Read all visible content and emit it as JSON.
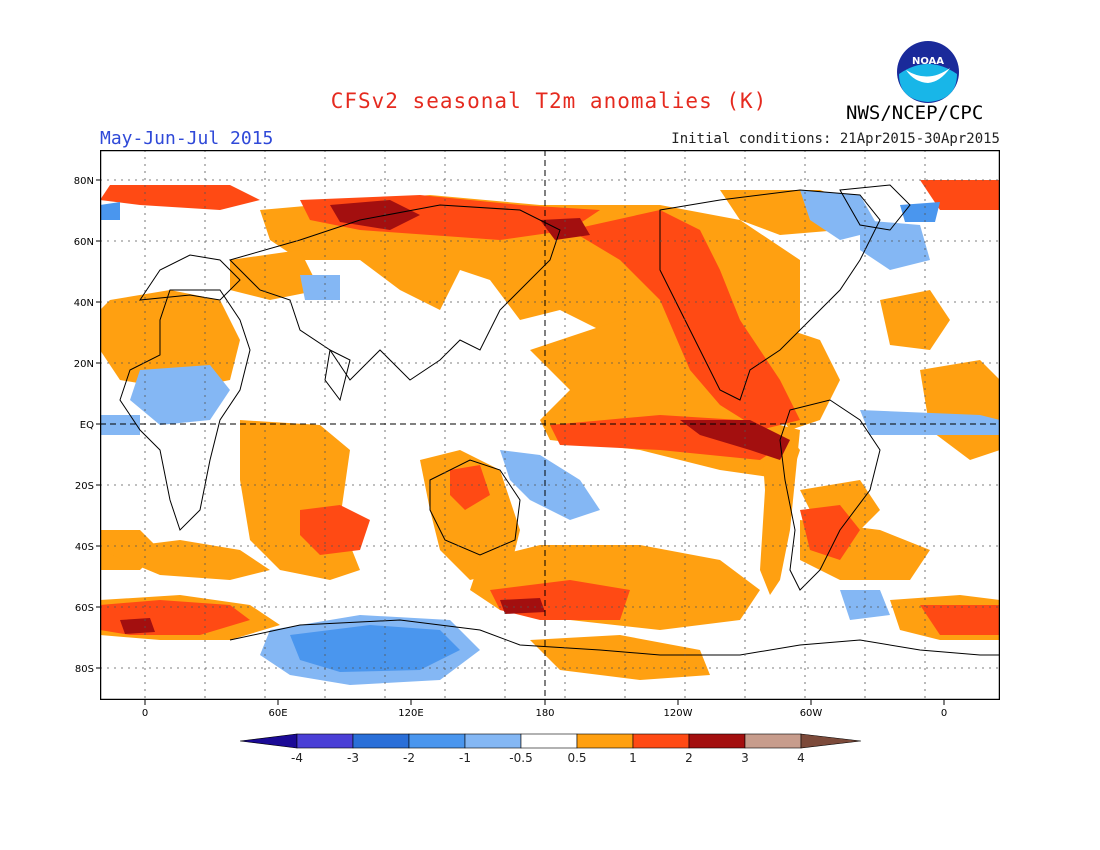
{
  "title": "CFSv2 seasonal T2m anomalies (K)",
  "period": "May-Jun-Jul 2015",
  "agency": "NWS/NCEP/CPC",
  "logo_text": "NOAA",
  "initial_conditions": "Initial conditions: 21Apr2015-30Apr2015",
  "axes": {
    "lat_labels": [
      "80N",
      "60N",
      "40N",
      "20N",
      "EQ",
      "20S",
      "40S",
      "60S",
      "80S"
    ],
    "lon_labels": [
      "0",
      "60E",
      "120E",
      "180",
      "120W",
      "60W",
      "0"
    ]
  },
  "colorbar": {
    "labels": [
      "-4",
      "-3",
      "-2",
      "-1",
      "-0.5",
      "0.5",
      "1",
      "2",
      "3",
      "4"
    ],
    "colors": [
      "#1b0a96",
      "#4a3fd6",
      "#2a6fd8",
      "#4a96ee",
      "#84b7f4",
      "#ffffff",
      "#ffa011",
      "#ff4a14",
      "#a30f0f",
      "#c79c8c",
      "#7c4a3a"
    ]
  },
  "colors": {
    "warm1": "#ffa011",
    "warm2": "#ff4a14",
    "warm3": "#a30f0f",
    "cool1": "#84b7f4",
    "cool2": "#4a96ee",
    "cool3": "#2a6fd8",
    "title": "#e52a1f",
    "period": "#2f49d8"
  }
}
